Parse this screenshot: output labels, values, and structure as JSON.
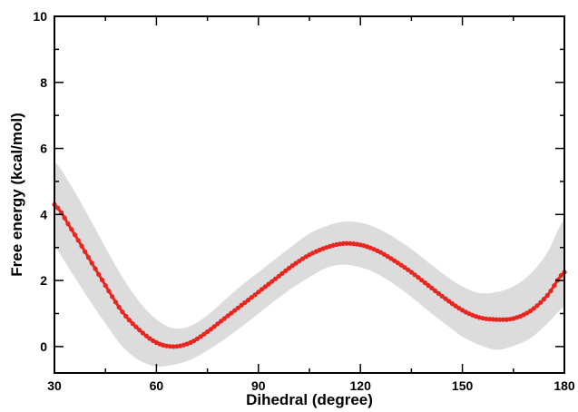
{
  "chart_data": {
    "type": "line",
    "title": "",
    "xlabel": "Dihedral (degree)",
    "ylabel": "Free energy (kcal/mol)",
    "xlim": [
      30,
      180
    ],
    "ylim": [
      -0.8,
      10
    ],
    "x_ticks": [
      30,
      60,
      90,
      120,
      150,
      180
    ],
    "y_ticks": [
      0,
      2,
      4,
      6,
      8,
      10
    ],
    "grid": false,
    "legend": "none",
    "colors": {
      "line": "#e8251f",
      "band": "#dcdcdc",
      "axis": "#000000"
    },
    "series": [
      {
        "style": "line-with-markers",
        "x": [
          30,
          35,
          40,
          45,
          50,
          55,
          60,
          65,
          70,
          75,
          80,
          85,
          90,
          95,
          100,
          105,
          110,
          115,
          120,
          125,
          130,
          135,
          140,
          145,
          150,
          155,
          160,
          165,
          170,
          175,
          180
        ],
        "y": [
          4.3,
          3.55,
          2.7,
          1.85,
          1.05,
          0.5,
          0.12,
          0.0,
          0.12,
          0.45,
          0.85,
          1.25,
          1.65,
          2.05,
          2.45,
          2.78,
          3.0,
          3.12,
          3.08,
          2.9,
          2.6,
          2.25,
          1.85,
          1.45,
          1.1,
          0.88,
          0.82,
          0.85,
          1.08,
          1.55,
          2.25
        ],
        "band_lower": [
          3.0,
          2.25,
          1.45,
          0.7,
          0.0,
          -0.42,
          -0.6,
          -0.55,
          -0.4,
          -0.12,
          0.22,
          0.6,
          1.0,
          1.4,
          1.78,
          2.1,
          2.38,
          2.48,
          2.4,
          2.2,
          1.88,
          1.5,
          1.08,
          0.68,
          0.3,
          0.05,
          -0.1,
          0.02,
          0.25,
          0.7,
          1.2
        ],
        "band_upper": [
          5.6,
          4.85,
          3.95,
          3.0,
          2.1,
          1.35,
          0.82,
          0.55,
          0.62,
          0.95,
          1.4,
          1.85,
          2.25,
          2.65,
          3.05,
          3.42,
          3.65,
          3.78,
          3.75,
          3.58,
          3.3,
          2.95,
          2.55,
          2.15,
          1.82,
          1.62,
          1.65,
          1.82,
          2.2,
          2.85,
          3.85
        ]
      }
    ]
  }
}
